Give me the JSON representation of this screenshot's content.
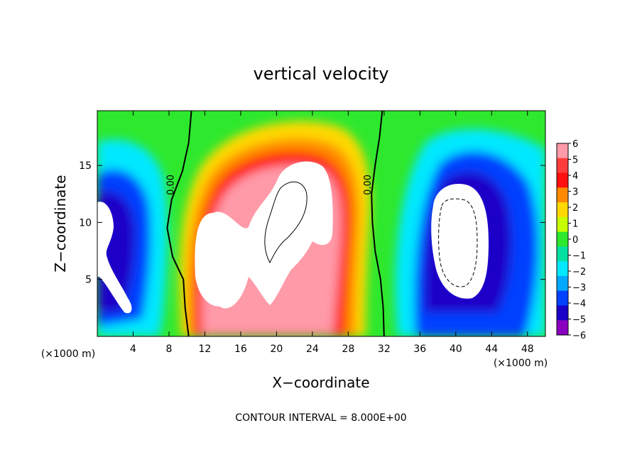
{
  "chart_data": {
    "type": "heatmap",
    "title": "vertical velocity",
    "xlabel": "X−coordinate",
    "ylabel": "Z−coordinate",
    "x_unit_label": "(×1000 m)",
    "y_unit_label": "(×1000 m)",
    "xlim": [
      0,
      50
    ],
    "ylim": [
      0,
      19.8
    ],
    "x_ticks": [
      4,
      8,
      12,
      16,
      20,
      24,
      28,
      32,
      36,
      40,
      44,
      48
    ],
    "y_ticks": [
      5,
      10,
      15
    ],
    "colorbar": {
      "levels": [
        6,
        5,
        4,
        3,
        2,
        1,
        0,
        -1,
        -2,
        -3,
        -4,
        -5,
        -6
      ],
      "labels": [
        "6",
        "5",
        "4",
        "3",
        "2",
        "1",
        "0",
        "−1",
        "−2",
        "−3",
        "−4",
        "−5",
        "−6"
      ],
      "colors": [
        "#ff9aa8",
        "#ff3c3c",
        "#ff1010",
        "#ff8a00",
        "#ffd800",
        "#c8ff00",
        "#2ee82e",
        "#00e0a0",
        "#00e8ff",
        "#00a8ff",
        "#0040ff",
        "#1a00c8",
        "#8a00c0"
      ]
    },
    "saturation_color": "#ffffff",
    "contour_labels": [
      {
        "text": "0.00",
        "x": 8.5,
        "z": 13.3
      },
      {
        "text": "0.00",
        "x": 30.5,
        "z": 13.3
      }
    ],
    "zero_contours": [
      [
        [
          10.5,
          19.8
        ],
        [
          10.2,
          17
        ],
        [
          9.5,
          14.5
        ],
        [
          8.3,
          12
        ],
        [
          7.8,
          9.5
        ],
        [
          8.4,
          7
        ],
        [
          9.6,
          5
        ],
        [
          9.8,
          2.5
        ],
        [
          10.2,
          0
        ]
      ],
      [
        [
          31.8,
          19.8
        ],
        [
          31.5,
          17.5
        ],
        [
          31.0,
          15
        ],
        [
          30.6,
          12.5
        ],
        [
          30.7,
          10
        ],
        [
          31.0,
          7.5
        ],
        [
          31.6,
          5
        ],
        [
          31.9,
          2.5
        ],
        [
          32.0,
          0
        ]
      ]
    ],
    "footer": "CONTOUR INTERVAL = 8.000E+00"
  }
}
